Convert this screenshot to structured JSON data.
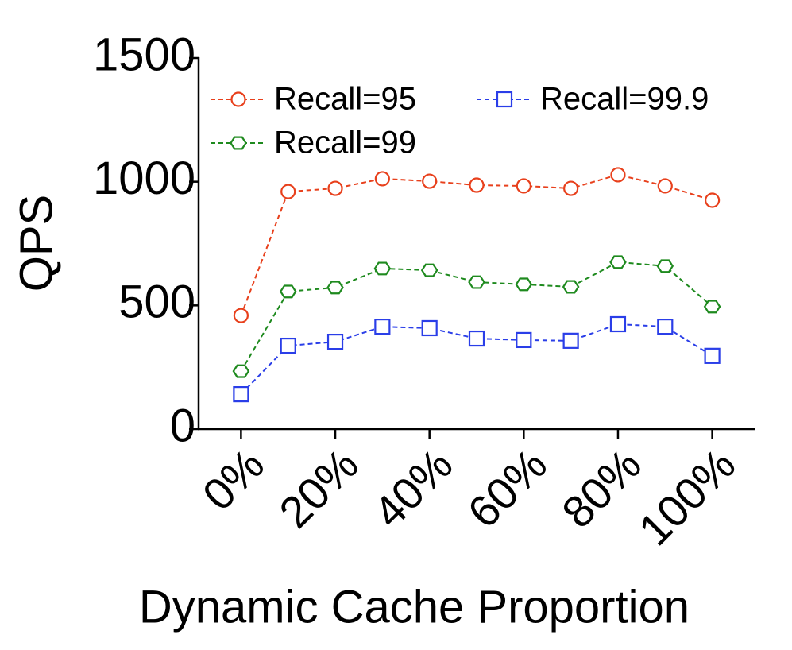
{
  "chart_data": {
    "type": "line",
    "x_label": "Dynamic Cache Proportion",
    "y_label": "QPS",
    "x": [
      0,
      10,
      20,
      30,
      40,
      50,
      60,
      70,
      80,
      90,
      100
    ],
    "xlim": [
      -9,
      109
    ],
    "xticks": [
      {
        "value": 0,
        "label": "0%"
      },
      {
        "value": 20,
        "label": "20%"
      },
      {
        "value": 40,
        "label": "40%"
      },
      {
        "value": 60,
        "label": "60%"
      },
      {
        "value": 80,
        "label": "80%"
      },
      {
        "value": 100,
        "label": "100%"
      }
    ],
    "ylim": [
      0,
      1500
    ],
    "yticks": [
      0,
      500,
      1000,
      1500
    ],
    "series": [
      {
        "name": "Recall=95",
        "color": "#e8401c",
        "marker": "circle",
        "values": [
          459,
          960,
          973,
          1012,
          1002,
          986,
          983,
          973,
          1028,
          983,
          925
        ]
      },
      {
        "name": "Recall=99",
        "color": "#1e8a1e",
        "marker": "hexagon",
        "values": [
          234,
          556,
          572,
          649,
          642,
          594,
          585,
          575,
          675,
          659,
          495
        ]
      },
      {
        "name": "Recall=99.9",
        "color": "#2a3ee8",
        "marker": "square",
        "values": [
          141,
          337,
          353,
          414,
          408,
          366,
          360,
          357,
          424,
          414,
          296
        ]
      }
    ]
  }
}
